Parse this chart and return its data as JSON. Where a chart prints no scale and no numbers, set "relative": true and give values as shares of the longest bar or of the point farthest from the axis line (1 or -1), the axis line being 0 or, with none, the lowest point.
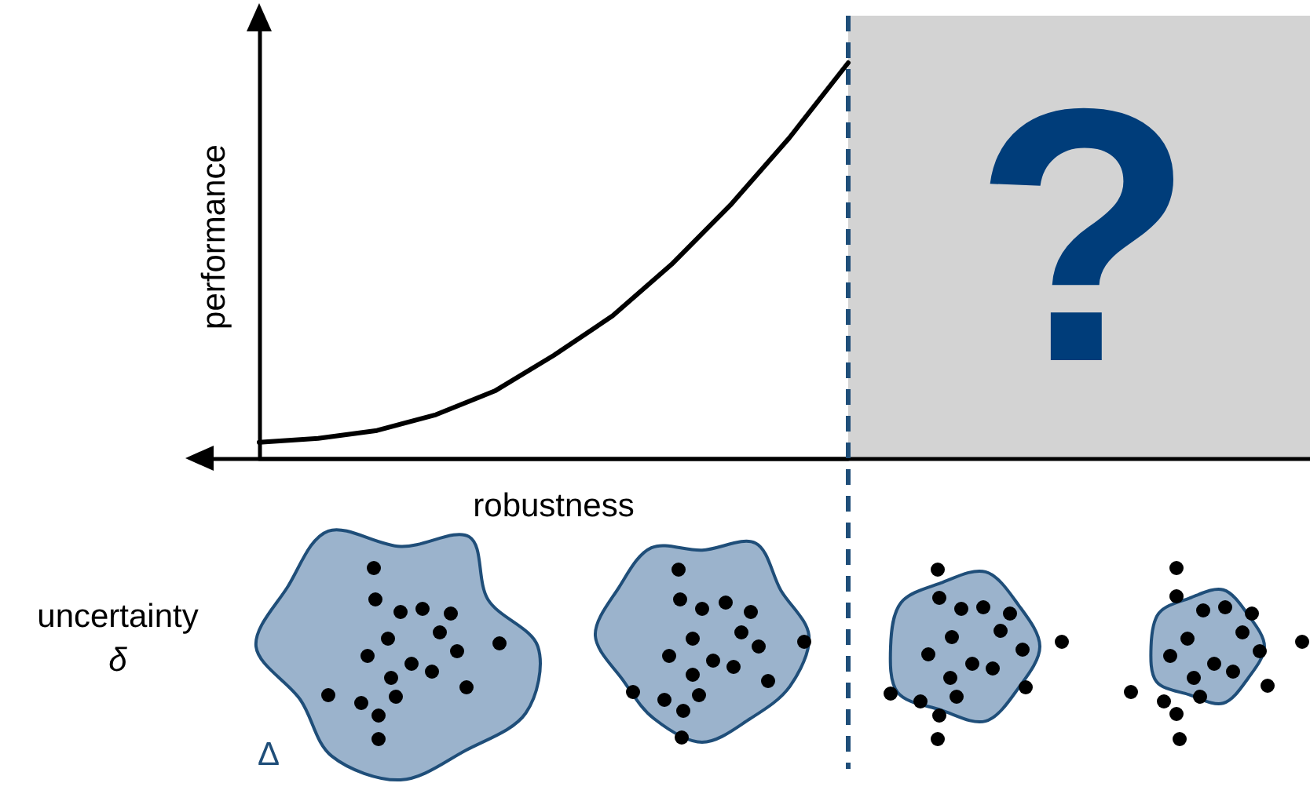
{
  "chart_data": {
    "type": "line",
    "relative": true,
    "xlabel": "robustness",
    "ylabel": "performance",
    "categories": [
      null,
      null,
      null,
      null,
      null,
      null,
      null,
      null,
      null,
      null,
      null
    ],
    "series": [
      {
        "color": "#000000",
        "values": [
          0.04,
          0.05,
          0.07,
          0.11,
          0.17,
          0.26,
          0.36,
          0.49,
          0.64,
          0.81,
          1
        ]
      }
    ],
    "annotations": [
      "uncertainty",
      "δ",
      "Δ",
      "?"
    ],
    "grid": false,
    "marker": "none",
    "line_style": "solid"
  }
}
